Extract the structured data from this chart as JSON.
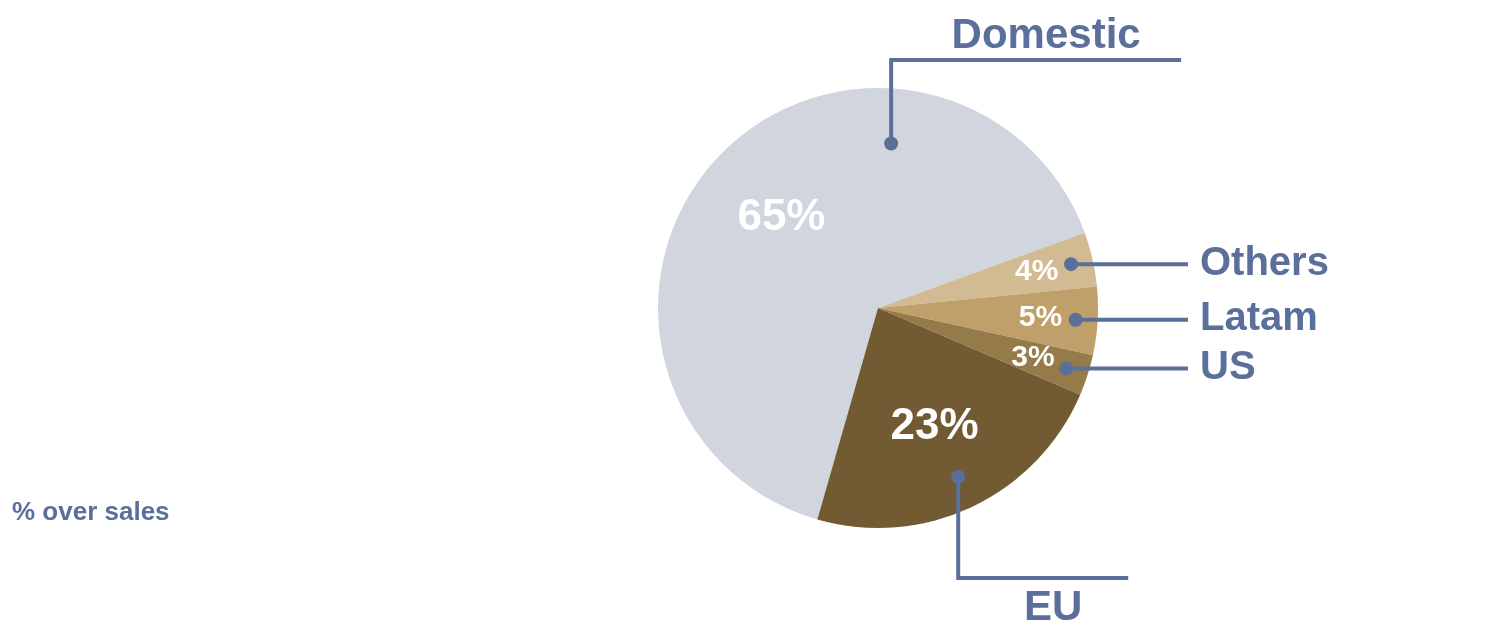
{
  "chart_data": {
    "type": "pie",
    "categories": [
      "Domestic",
      "Others",
      "Latam",
      "US",
      "EU"
    ],
    "values": [
      65,
      4,
      5,
      3,
      23
    ],
    "value_labels": [
      "65%",
      "4%",
      "5%",
      "3%",
      "23%"
    ],
    "colors": [
      "#d0d5de",
      "#d2ba92",
      "#bf9f6a",
      "#957a4a",
      "#725a33"
    ],
    "annotations": [
      "% over sales"
    ]
  }
}
